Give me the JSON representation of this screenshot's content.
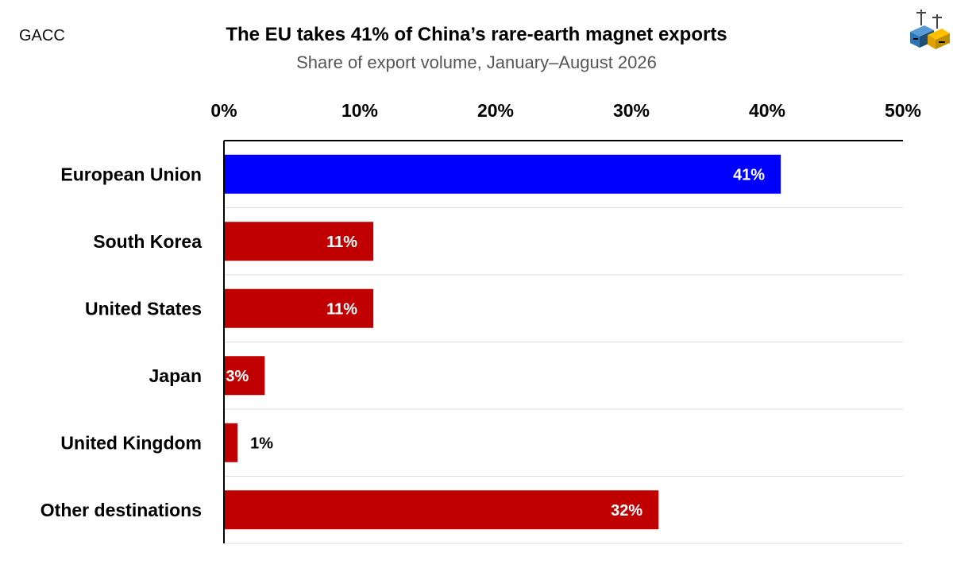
{
  "header": {
    "source": "GACC",
    "title": "The EU takes 41% of China’s rare-earth magnet exports",
    "subtitle": "Share of export volume, January–August 2026"
  },
  "logo": {
    "icon": "shipping-containers-icon"
  },
  "colors": {
    "highlight": "#0000ff",
    "default": "#c00000",
    "grid": "#dddddd",
    "axis": "#000000"
  },
  "chart_data": {
    "type": "bar",
    "orientation": "horizontal",
    "categories": [
      "European Union",
      "South Korea",
      "United States",
      "Japan",
      "United Kingdom",
      "Other destinations"
    ],
    "values": [
      41,
      11,
      11,
      3,
      1,
      32
    ],
    "value_labels": [
      "41%",
      "11%",
      "11%",
      "3%",
      "1%",
      "32%"
    ],
    "highlight": "European Union",
    "xlim": [
      0,
      50
    ],
    "ticks": [
      0,
      10,
      20,
      30,
      40,
      50
    ],
    "tick_labels": [
      "0%",
      "10%",
      "20%",
      "30%",
      "40%",
      "50%"
    ],
    "xaxis_position": "top",
    "grid": "horizontal separators"
  }
}
